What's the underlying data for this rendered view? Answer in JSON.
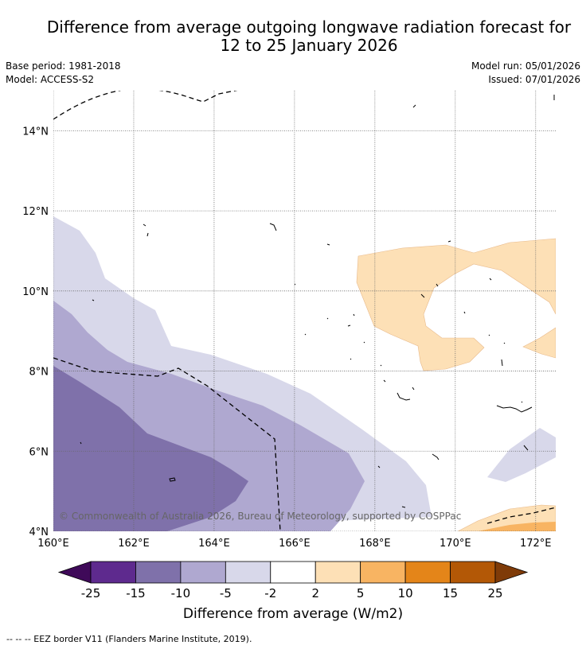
{
  "title_line1": "Difference from average outgoing longwave radiation forecast for",
  "title_line2": "12 to 25 January 2026",
  "base_period": "Base period: 1981-2018",
  "model": "Model: ACCESS-S2",
  "model_run": "Model run: 05/01/2026",
  "issued": "Issued: 07/01/2026",
  "map": {
    "lon_range": [
      160,
      172.5
    ],
    "lat_range": [
      4,
      15
    ],
    "lat_ticks": [
      "4°N",
      "6°N",
      "8°N",
      "10°N",
      "12°N",
      "14°N"
    ],
    "lon_ticks": [
      "160°E",
      "162°E",
      "164°E",
      "166°E",
      "168°E",
      "170°E",
      "172°E"
    ],
    "copyright": "© Commonwealth of Australia 2026, Bureau of Meteorology, supported by COSPPac"
  },
  "colorbar": {
    "ticks": [
      "-25",
      "-15",
      "-10",
      "-5",
      "-2",
      "2",
      "5",
      "10",
      "15",
      "25"
    ],
    "colors": [
      "#3f0a59",
      "#5e2a8e",
      "#7f71aa",
      "#afa8d0",
      "#d8d8ea",
      "#ffffff",
      "#fde0b6",
      "#f8b462",
      "#e48519",
      "#b35806",
      "#7f3b08"
    ],
    "label": "Difference from average (W/m2)"
  },
  "footnote": "-- -- -- EEZ border V11 (Flanders Marine Institute, 2019)."
}
